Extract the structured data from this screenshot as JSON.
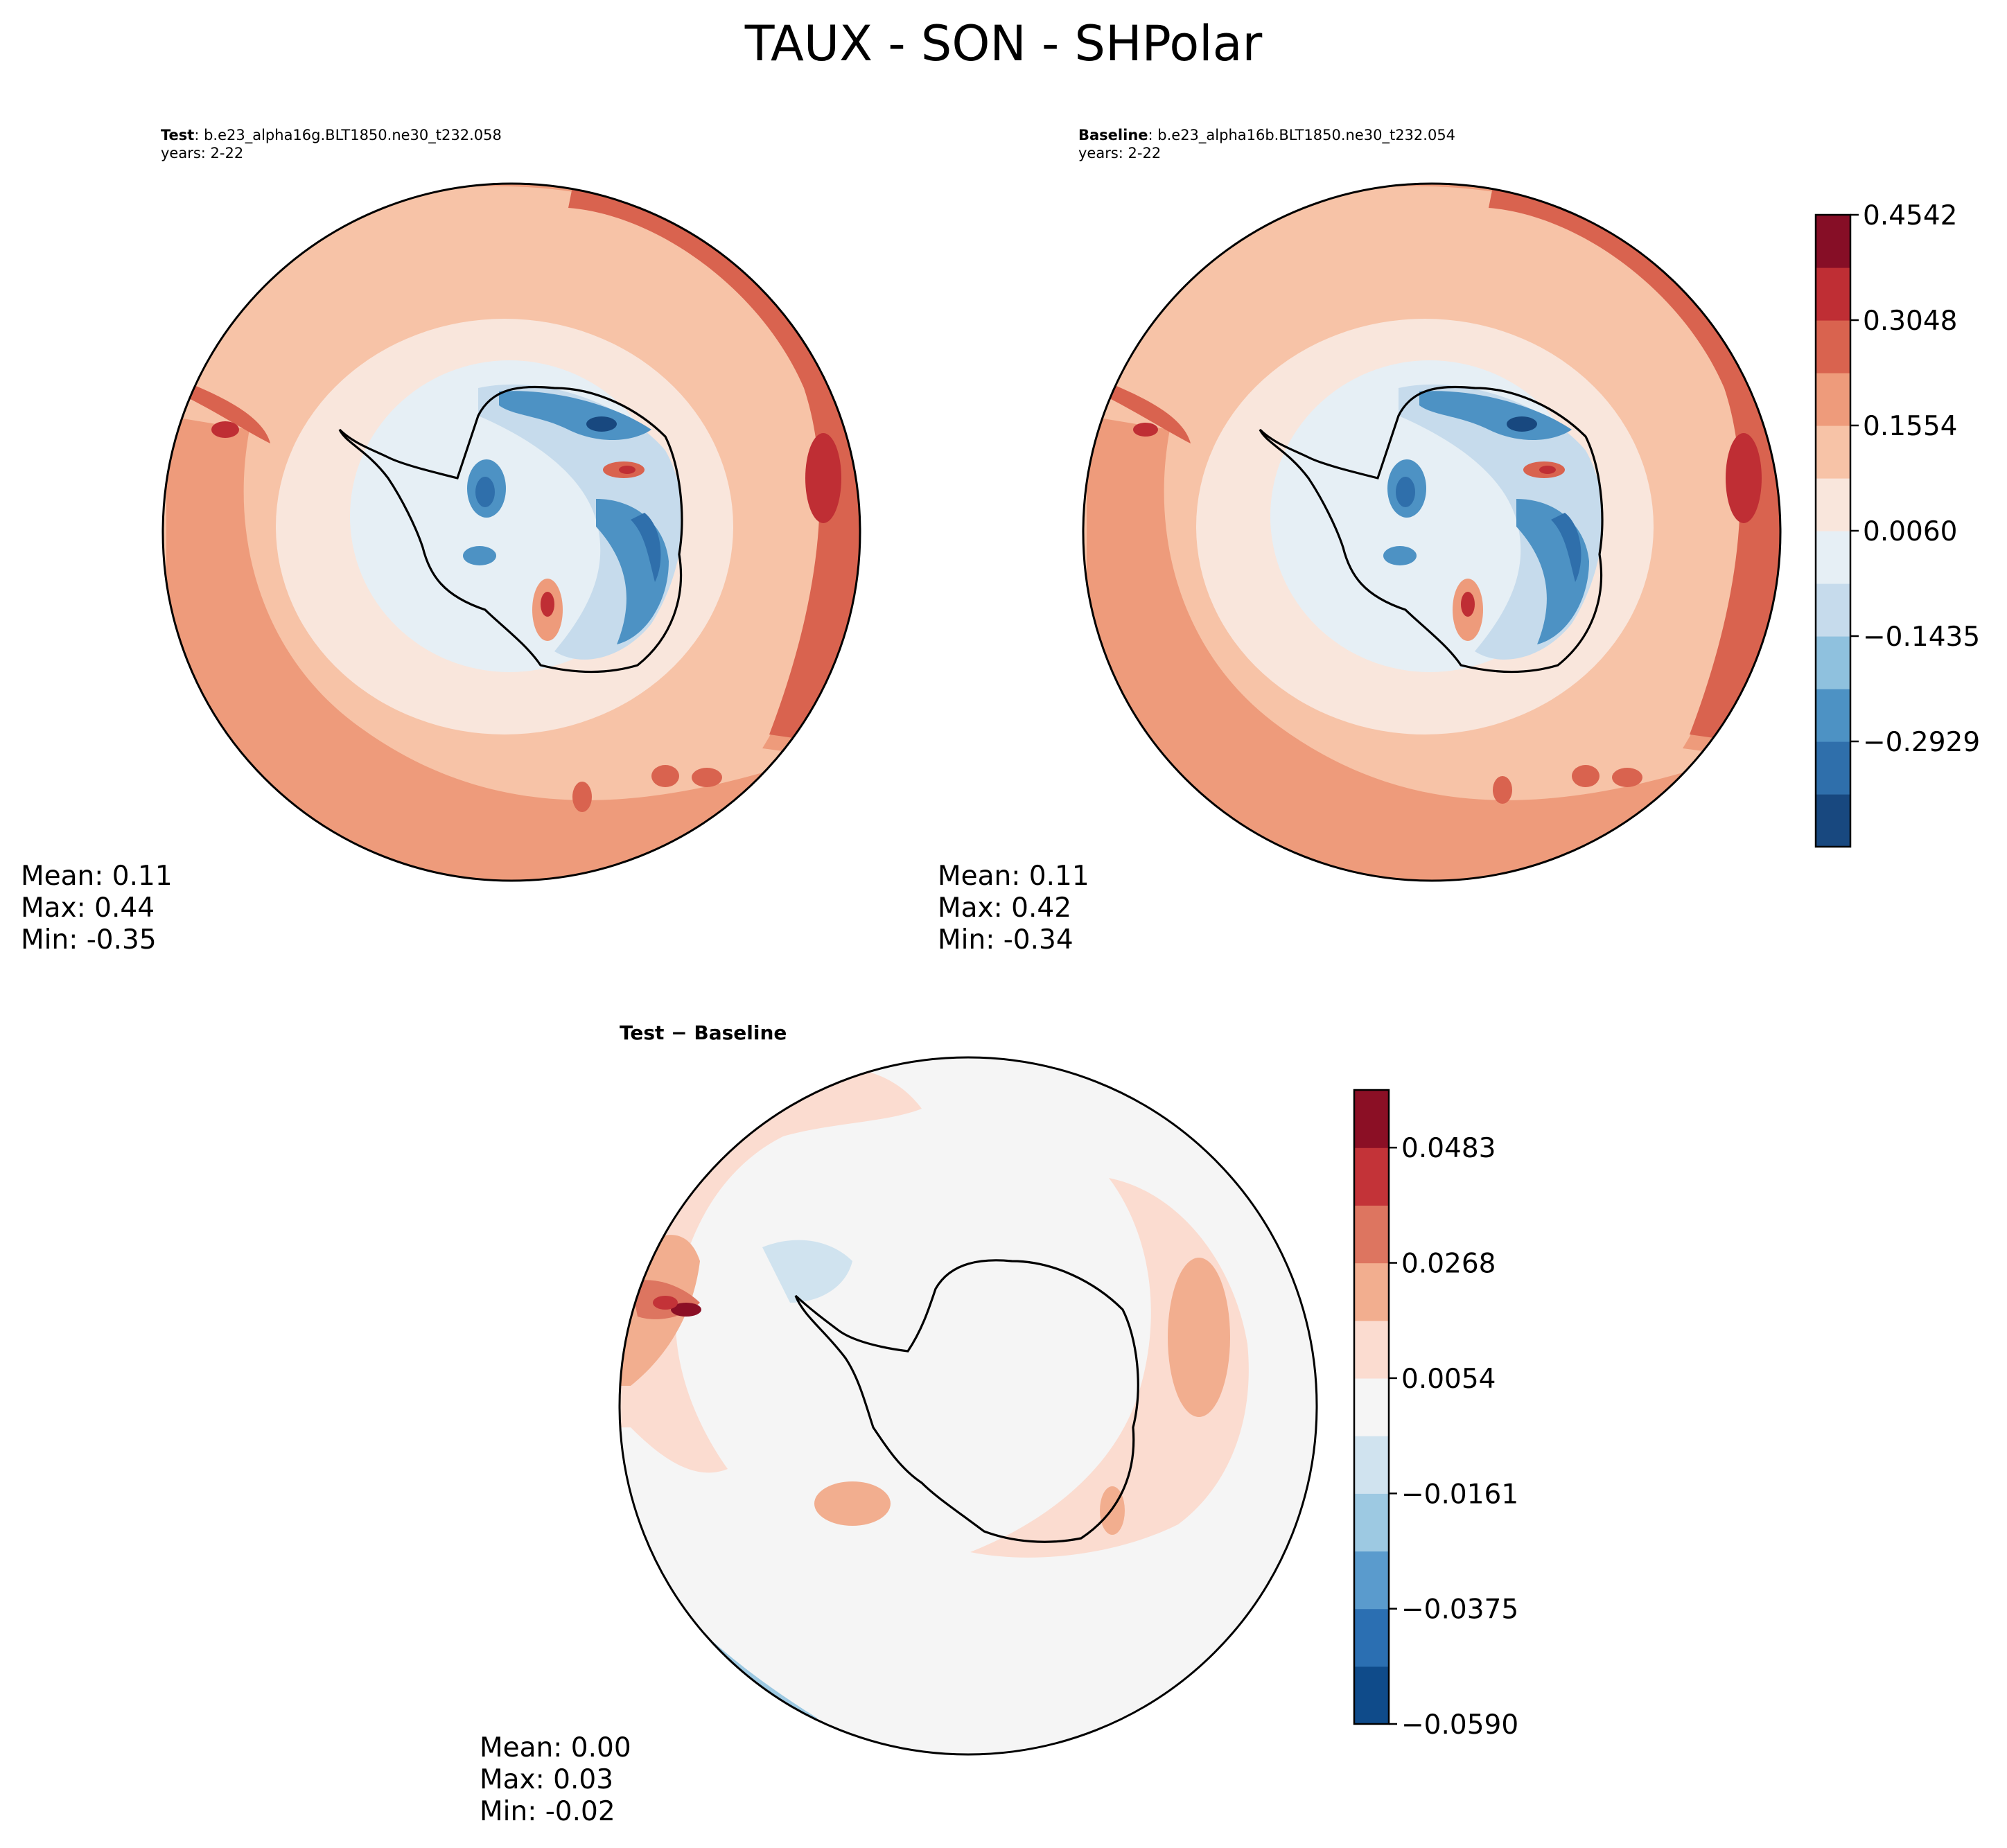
{
  "title": "TAUX - SON - SHPolar",
  "panels": {
    "test": {
      "label": "Test",
      "case": ": b.e23_alpha16g.BLT1850.ne30_t232.058",
      "years": "years: 2-22",
      "stats": {
        "mean": "Mean:  0.11",
        "max": "Max:  0.44",
        "min": "Min: -0.35"
      }
    },
    "baseline": {
      "label": "Baseline",
      "case": ": b.e23_alpha16b.BLT1850.ne30_t232.054",
      "years": "years: 2-22",
      "stats": {
        "mean": "Mean:  0.11",
        "max": "Max:  0.42",
        "min": "Min: -0.34"
      }
    },
    "diff": {
      "label": "Test − Baseline",
      "stats": {
        "mean": "Mean:  0.00",
        "max": "Max:  0.03",
        "min": "Min: -0.02"
      }
    }
  },
  "chart_data": [
    {
      "type": "heatmap",
      "projection": "south polar stereographic",
      "panel": "Test",
      "colorbar_ticks": [
        "0.4542",
        "0.3048",
        "0.1554",
        "0.0060",
        "−0.1435",
        "−0.2929"
      ],
      "levels": [
        0.4542,
        0.3048,
        0.1554,
        0.006,
        -0.1435,
        -0.2929
      ],
      "mean": 0.11,
      "max": 0.44,
      "min": -0.35
    },
    {
      "type": "heatmap",
      "projection": "south polar stereographic",
      "panel": "Baseline",
      "colorbar_ticks": [
        "0.4542",
        "0.3048",
        "0.1554",
        "0.0060",
        "−0.1435",
        "−0.2929"
      ],
      "levels": [
        0.4542,
        0.3048,
        0.1554,
        0.006,
        -0.1435,
        -0.2929
      ],
      "mean": 0.11,
      "max": 0.42,
      "min": -0.34
    },
    {
      "type": "heatmap",
      "projection": "south polar stereographic",
      "panel": "Test − Baseline",
      "colorbar_ticks": [
        "0.0483",
        "0.0268",
        "0.0054",
        "−0.0161",
        "−0.0375",
        "−0.0590"
      ],
      "levels": [
        0.0483,
        0.0268,
        0.0054,
        -0.0161,
        -0.0375,
        -0.059
      ],
      "mean": 0.0,
      "max": 0.03,
      "min": -0.02
    }
  ],
  "colormap": {
    "main": [
      "#18487f",
      "#2f6fab",
      "#4d92c4",
      "#8fc1de",
      "#c6dbec",
      "#e6eff5",
      "#f9e6dc",
      "#f7c3a7",
      "#ee9b7b",
      "#d9634f",
      "#bf2e34",
      "#860e26"
    ],
    "diff": [
      "#0f4b8a",
      "#2b6fb2",
      "#5a9bcd",
      "#9dc9e2",
      "#d0e3ef",
      "#f5f5f5",
      "#fbdcd0",
      "#f2ae8f",
      "#dd7560",
      "#c33338",
      "#8b0f25"
    ]
  }
}
